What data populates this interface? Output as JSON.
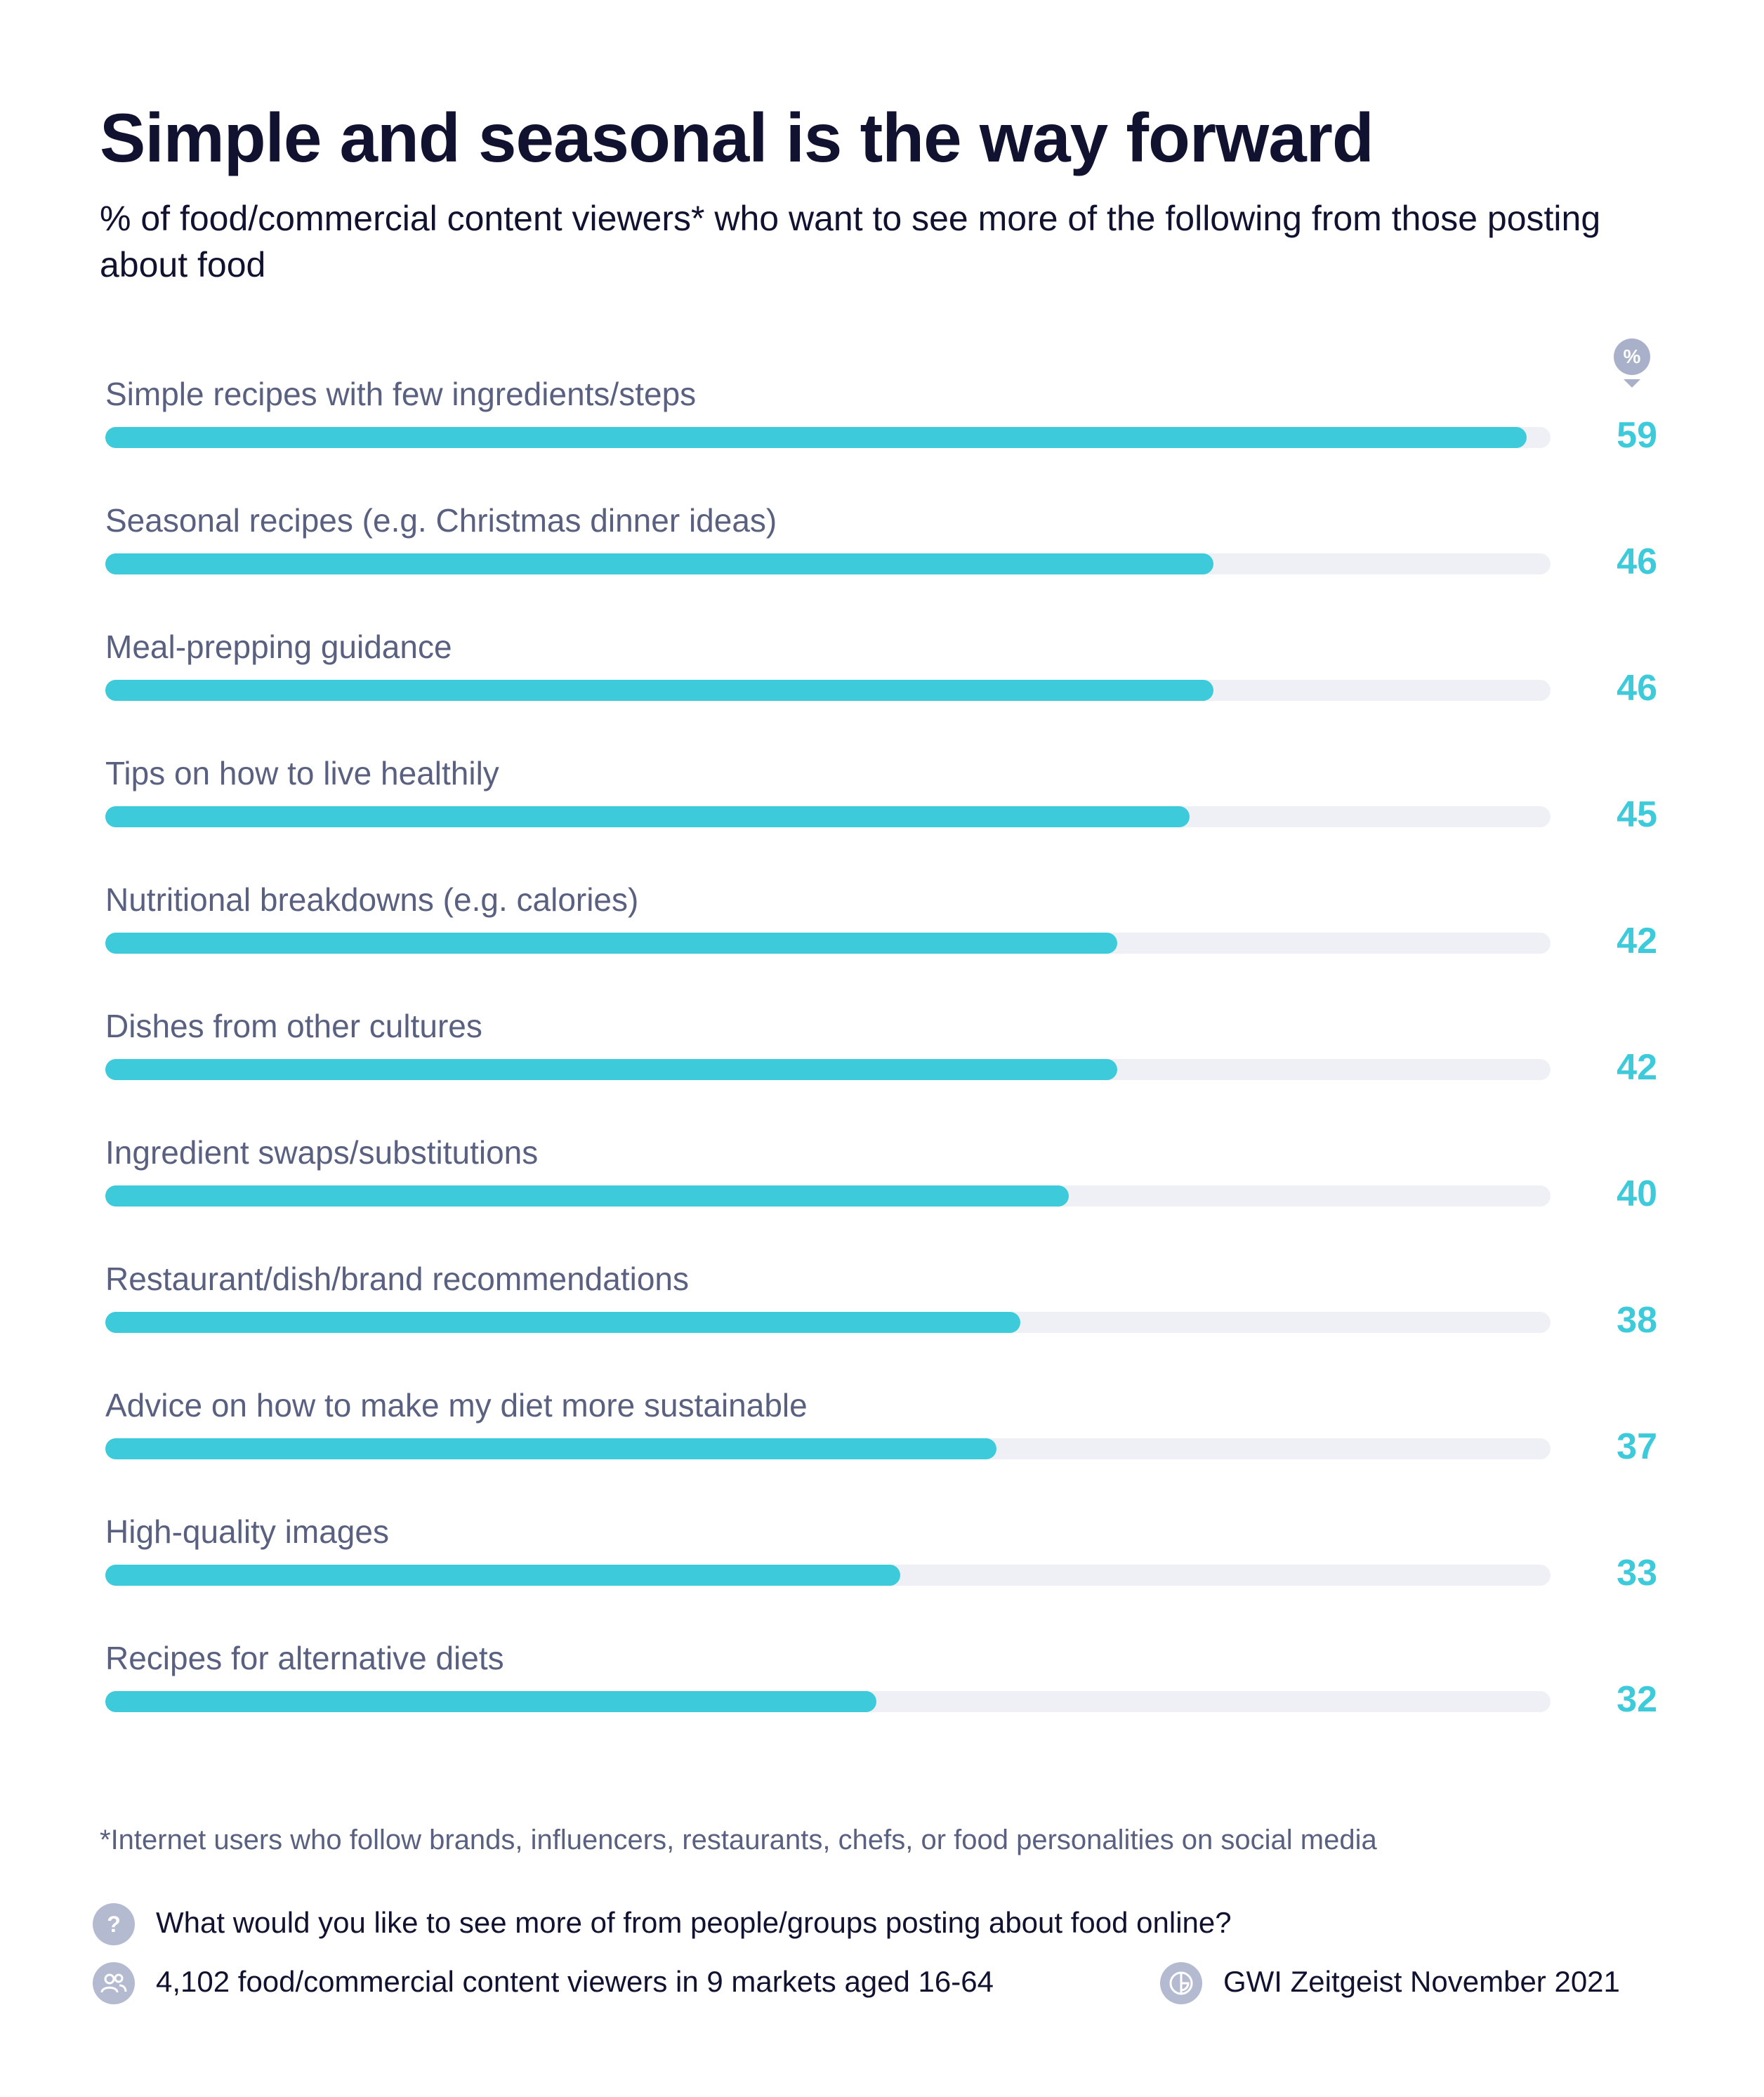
{
  "title": "Simple and seasonal is the way forward",
  "subtitle": "% of food/commercial content viewers* who want to see more of the following from those posting about food",
  "percent_badge": "%",
  "chart_data": {
    "type": "bar",
    "orientation": "horizontal",
    "categories": [
      "Simple recipes with few ingredients/steps",
      "Seasonal recipes (e.g. Christmas dinner ideas)",
      "Meal-prepping guidance",
      "Tips on how to live healthily",
      "Nutritional breakdowns (e.g. calories)",
      "Dishes from other cultures",
      "Ingredient swaps/substitutions",
      "Restaurant/dish/brand recommendations",
      "Advice on how to make my diet more sustainable",
      "High-quality images",
      "Recipes for alternative diets"
    ],
    "values": [
      59,
      46,
      46,
      45,
      42,
      42,
      40,
      38,
      37,
      33,
      32
    ],
    "xlim": [
      0,
      60
    ],
    "colors": {
      "bar": "#3dcbdb",
      "track": "#eef0f5",
      "label": "#5a6180",
      "value": "#3dcbdb"
    }
  },
  "footnote": "*Internet users who follow brands, influencers, restaurants, chefs, or food personalities on social media",
  "meta": {
    "question_icon": "question-mark-icon",
    "question_glyph": "?",
    "question": "What would you like to see more of from people/groups posting about food online?",
    "sample_icon": "people-icon",
    "sample": "4,102 food/commercial content viewers in 9 markets aged 16-64",
    "source_icon": "gwi-logo-icon",
    "source": "GWI Zeitgeist November 2021"
  }
}
